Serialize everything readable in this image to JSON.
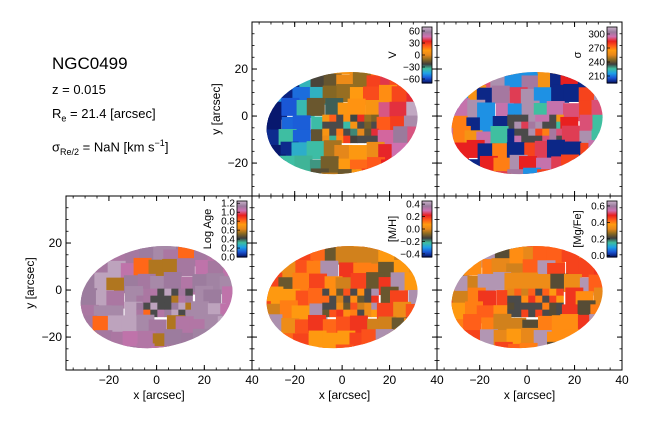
{
  "galaxy": {
    "name": "NGC0499",
    "z_label": "z = 0.015",
    "re_prefix": "R",
    "re_sub": "e",
    "re_rest": " = 21.4 [arcsec]",
    "sigma_prefix": "σ",
    "sigma_sub": "Re/2",
    "sigma_rest": " = NaN [km s",
    "sigma_sup": "−1",
    "sigma_close": "]"
  },
  "colors": {
    "colormap": [
      "#08186e",
      "#1a56d6",
      "#1fa0e8",
      "#3fbfa0",
      "#3e3e3e",
      "#8a6a22",
      "#e8881a",
      "#ff9a10",
      "#ff5a1a",
      "#e82020",
      "#d070b0",
      "#9a7a9c",
      "#c8b0c8"
    ]
  },
  "chart_data": [
    {
      "type": "heatmap",
      "panel": "V",
      "xlabel": "",
      "ylabel": "y [arcsec]",
      "xlim": [
        -38,
        40
      ],
      "ylim": [
        -34,
        40
      ],
      "xticks": [],
      "yticks": [
        "20",
        "0",
        "−20"
      ],
      "colorbar": {
        "label": "V",
        "range": [
          -70,
          70
        ],
        "ticks": [
          "60",
          "30",
          "0",
          "−30",
          "−60"
        ]
      }
    },
    {
      "type": "heatmap",
      "panel": "sigma",
      "xlabel": "",
      "ylabel": "",
      "xlim": [
        -38,
        40
      ],
      "ylim": [
        -34,
        40
      ],
      "xticks": [],
      "yticks": [],
      "colorbar": {
        "label": "σ",
        "range": [
          195,
          315
        ],
        "ticks": [
          "300",
          "270",
          "240",
          "210"
        ]
      }
    },
    {
      "type": "heatmap",
      "panel": "Log Age",
      "xlabel": "x [arcsec]",
      "ylabel": "y [arcsec]",
      "xlim": [
        -38,
        40
      ],
      "ylim": [
        -34,
        40
      ],
      "xticks": [
        "−20",
        "0",
        "20",
        "40"
      ],
      "yticks": [
        "20",
        "0",
        "−20"
      ],
      "colorbar": {
        "label": "Log Age",
        "range": [
          0,
          1.25
        ],
        "ticks": [
          "1.2",
          "1.0",
          "0.8",
          "0.6",
          "0.4",
          "0.2",
          "0.0"
        ]
      }
    },
    {
      "type": "heatmap",
      "panel": "[M/H]",
      "xlabel": "x [arcsec]",
      "ylabel": "",
      "xlim": [
        -38,
        40
      ],
      "ylim": [
        -34,
        40
      ],
      "xticks": [
        "−20",
        "0",
        "20",
        "40"
      ],
      "yticks": [],
      "colorbar": {
        "label": "[M/H]",
        "range": [
          -0.45,
          0.45
        ],
        "ticks": [
          "0.4",
          "0.2",
          "0.0",
          "−0.2",
          "−0.4"
        ]
      }
    },
    {
      "type": "heatmap",
      "panel": "[Mg/Fe]",
      "xlabel": "x [arcsec]",
      "ylabel": "",
      "xlim": [
        -38,
        40
      ],
      "ylim": [
        -34,
        40
      ],
      "xticks": [
        "−20",
        "0",
        "20",
        "40"
      ],
      "yticks": [],
      "colorbar": {
        "label": "[Mg/Fe]",
        "range": [
          -0.02,
          0.66
        ],
        "ticks": [
          "0.6",
          "0.4",
          "0.2",
          "0.0"
        ]
      }
    }
  ]
}
